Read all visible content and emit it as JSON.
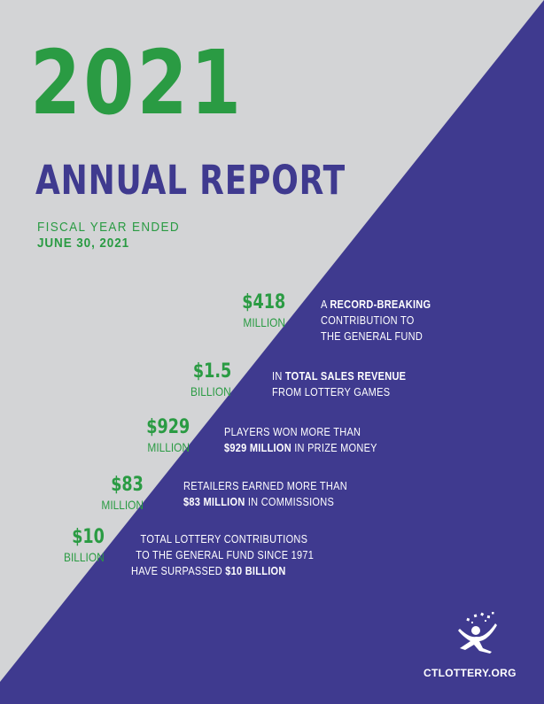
{
  "header": {
    "year": "2021",
    "title": "ANNUAL REPORT",
    "fiscal_line1": "FISCAL YEAR ENDED",
    "fiscal_line2": "JUNE 30, 2021"
  },
  "stats": [
    {
      "value": "$418",
      "unit": "MILLION",
      "lines": [
        [
          "A ",
          "RECORD-BREAKING"
        ],
        [
          "CONTRIBUTION TO"
        ],
        [
          "THE GENERAL FUND"
        ]
      ]
    },
    {
      "value": "$1.5",
      "unit": "BILLION",
      "lines": [
        [
          "IN ",
          "TOTAL SALES REVENUE"
        ],
        [
          "FROM LOTTERY GAMES"
        ]
      ]
    },
    {
      "value": "$929",
      "unit": "MILLION",
      "lines": [
        [
          "PLAYERS WON MORE THAN"
        ],
        [
          "",
          "$929 MILLION",
          " IN PRIZE MONEY"
        ]
      ]
    },
    {
      "value": "$83",
      "unit": "MILLION",
      "lines": [
        [
          "RETAILERS EARNED MORE THAN"
        ],
        [
          "",
          "$83 MILLION",
          " IN COMMISSIONS"
        ]
      ]
    },
    {
      "value": "$10",
      "unit": "BILLION",
      "lines": [
        [
          "TOTAL LOTTERY CONTRIBUTIONS"
        ],
        [
          "TO THE GENERAL FUND SINCE 1971"
        ],
        [
          "HAVE SURPASSED ",
          "$10 BILLION"
        ]
      ]
    }
  ],
  "footer": {
    "website": "CTLOTTERY.ORG",
    "logo_icon": "ct-lottery-logo-icon"
  },
  "colors": {
    "green": "#2a9b43",
    "purple": "#3f3a8f",
    "gray": "#d3d4d6"
  }
}
